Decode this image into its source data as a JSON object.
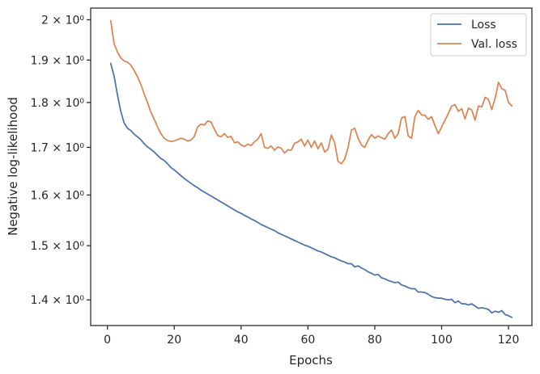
{
  "chart_data": {
    "type": "line",
    "xlabel": "Epochs",
    "ylabel": "Negative log-likelihood",
    "yscale": "log",
    "xlim": [
      -5,
      127
    ],
    "ylim": [
      1.355,
      2.03
    ],
    "x_ticks": [
      0,
      20,
      40,
      60,
      80,
      100,
      120
    ],
    "x_tick_labels": [
      "0",
      "20",
      "40",
      "60",
      "80",
      "100",
      "120"
    ],
    "y_ticks": [
      1.4,
      1.5,
      1.6,
      1.7,
      1.8,
      1.9,
      2.0
    ],
    "y_tick_labels": [
      "1.4 × 10⁰",
      "1.5 × 10⁰",
      "1.6 × 10⁰",
      "1.7 × 10⁰",
      "1.8 × 10⁰",
      "1.9 × 10⁰",
      "2 × 10⁰"
    ],
    "grid": false,
    "legend_position": "top-right",
    "series": [
      {
        "name": "Loss",
        "color": "#4c72b0",
        "values": [
          1.892,
          1.862,
          1.818,
          1.78,
          1.754,
          1.742,
          1.737,
          1.729,
          1.723,
          1.717,
          1.708,
          1.701,
          1.696,
          1.69,
          1.683,
          1.676,
          1.672,
          1.665,
          1.657,
          1.652,
          1.646,
          1.64,
          1.634,
          1.629,
          1.624,
          1.619,
          1.615,
          1.61,
          1.606,
          1.602,
          1.598,
          1.594,
          1.59,
          1.586,
          1.582,
          1.578,
          1.574,
          1.57,
          1.566,
          1.563,
          1.559,
          1.556,
          1.552,
          1.549,
          1.545,
          1.541,
          1.538,
          1.535,
          1.532,
          1.529,
          1.525,
          1.522,
          1.519,
          1.516,
          1.513,
          1.51,
          1.507,
          1.504,
          1.501,
          1.499,
          1.496,
          1.493,
          1.49,
          1.488,
          1.485,
          1.482,
          1.479,
          1.477,
          1.474,
          1.471,
          1.469,
          1.466,
          1.466,
          1.46,
          1.462,
          1.458,
          1.455,
          1.451,
          1.448,
          1.445,
          1.446,
          1.44,
          1.438,
          1.435,
          1.433,
          1.431,
          1.432,
          1.427,
          1.425,
          1.422,
          1.42,
          1.42,
          1.414,
          1.414,
          1.413,
          1.41,
          1.406,
          1.404,
          1.403,
          1.403,
          1.401,
          1.4,
          1.401,
          1.395,
          1.398,
          1.393,
          1.393,
          1.391,
          1.393,
          1.389,
          1.385,
          1.386,
          1.385,
          1.383,
          1.377,
          1.38,
          1.378,
          1.381,
          1.374,
          1.372,
          1.369
        ]
      },
      {
        "name": "Val. loss",
        "color": "#dd8452",
        "values": [
          1.998,
          1.94,
          1.92,
          1.905,
          1.898,
          1.895,
          1.888,
          1.875,
          1.86,
          1.842,
          1.82,
          1.8,
          1.778,
          1.762,
          1.745,
          1.73,
          1.72,
          1.715,
          1.713,
          1.714,
          1.717,
          1.72,
          1.718,
          1.714,
          1.716,
          1.724,
          1.745,
          1.751,
          1.749,
          1.758,
          1.756,
          1.74,
          1.726,
          1.723,
          1.73,
          1.722,
          1.724,
          1.71,
          1.712,
          1.705,
          1.702,
          1.707,
          1.704,
          1.712,
          1.718,
          1.73,
          1.7,
          1.698,
          1.703,
          1.694,
          1.701,
          1.698,
          1.688,
          1.695,
          1.694,
          1.709,
          1.712,
          1.718,
          1.703,
          1.716,
          1.7,
          1.714,
          1.697,
          1.71,
          1.69,
          1.696,
          1.727,
          1.71,
          1.67,
          1.665,
          1.675,
          1.7,
          1.738,
          1.742,
          1.72,
          1.705,
          1.7,
          1.716,
          1.728,
          1.72,
          1.725,
          1.721,
          1.718,
          1.73,
          1.738,
          1.72,
          1.73,
          1.765,
          1.768,
          1.725,
          1.72,
          1.768,
          1.782,
          1.772,
          1.771,
          1.762,
          1.768,
          1.748,
          1.73,
          1.745,
          1.76,
          1.775,
          1.792,
          1.795,
          1.78,
          1.786,
          1.763,
          1.787,
          1.783,
          1.76,
          1.792,
          1.79,
          1.812,
          1.807,
          1.784,
          1.81,
          1.847,
          1.832,
          1.828,
          1.8,
          1.792
        ]
      }
    ]
  }
}
